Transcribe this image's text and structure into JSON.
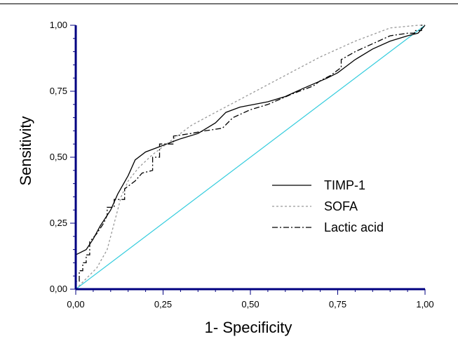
{
  "chart_data": {
    "type": "line",
    "title": "",
    "xlabel": "1- Specificity",
    "ylabel": "Sensitivity",
    "xlim": [
      0,
      1
    ],
    "ylim": [
      0,
      1
    ],
    "xticks": [
      "0,00",
      "0,25",
      "0,50",
      "0,75",
      "1,00"
    ],
    "yticks": [
      "0,00",
      "0,25",
      "0,50",
      "0,75",
      "1,00"
    ],
    "grid": false,
    "legend_position": "center-right",
    "reference_line": {
      "x": [
        0,
        1
      ],
      "y": [
        0,
        1
      ],
      "color": "#33ccdd"
    },
    "axis_color": "#000080",
    "series": [
      {
        "name": "TIMP-1",
        "style": "solid",
        "color": "#000000",
        "x": [
          0,
          0,
          0.03,
          0.05,
          0.07,
          0.1,
          0.12,
          0.15,
          0.17,
          0.2,
          0.24,
          0.28,
          0.3,
          0.35,
          0.4,
          0.43,
          0.47,
          0.55,
          0.6,
          0.65,
          0.72,
          0.75,
          0.8,
          0.85,
          0.9,
          0.95,
          0.98,
          1
        ],
        "y": [
          0,
          0.13,
          0.15,
          0.19,
          0.24,
          0.3,
          0.36,
          0.43,
          0.49,
          0.52,
          0.54,
          0.56,
          0.57,
          0.59,
          0.63,
          0.67,
          0.69,
          0.71,
          0.73,
          0.76,
          0.8,
          0.82,
          0.87,
          0.91,
          0.94,
          0.96,
          0.97,
          1
        ]
      },
      {
        "name": "SOFA",
        "style": "dotted",
        "color": "#999999",
        "x": [
          0,
          0.03,
          0.06,
          0.09,
          0.11,
          0.13,
          0.15,
          0.18,
          0.22,
          0.27,
          0.33,
          0.4,
          0.5,
          0.6,
          0.7,
          0.8,
          0.9,
          0.98,
          1
        ],
        "y": [
          0,
          0.04,
          0.08,
          0.15,
          0.25,
          0.35,
          0.41,
          0.46,
          0.51,
          0.56,
          0.62,
          0.67,
          0.74,
          0.81,
          0.88,
          0.94,
          0.99,
          1,
          1
        ]
      },
      {
        "name": "Lactic acid",
        "style": "dashdot",
        "color": "#000000",
        "x": [
          0,
          0,
          0.01,
          0.01,
          0.02,
          0.02,
          0.03,
          0.03,
          0.04,
          0.04,
          0.06,
          0.08,
          0.09,
          0.09,
          0.11,
          0.11,
          0.14,
          0.14,
          0.17,
          0.19,
          0.22,
          0.22,
          0.24,
          0.24,
          0.28,
          0.28,
          0.33,
          0.37,
          0.42,
          0.45,
          0.5,
          0.55,
          0.62,
          0.68,
          0.7,
          0.73,
          0.76,
          0.76,
          0.8,
          0.85,
          0.9,
          0.95,
          0.97,
          0.97,
          0.99,
          0.99,
          1
        ],
        "y": [
          0,
          0.03,
          0.03,
          0.07,
          0.07,
          0.1,
          0.1,
          0.13,
          0.13,
          0.18,
          0.21,
          0.25,
          0.28,
          0.31,
          0.31,
          0.34,
          0.34,
          0.38,
          0.41,
          0.44,
          0.45,
          0.5,
          0.5,
          0.55,
          0.55,
          0.58,
          0.59,
          0.6,
          0.61,
          0.65,
          0.68,
          0.7,
          0.74,
          0.77,
          0.79,
          0.81,
          0.84,
          0.87,
          0.9,
          0.93,
          0.96,
          0.97,
          0.97,
          0.98,
          0.98,
          1,
          1
        ]
      }
    ]
  }
}
